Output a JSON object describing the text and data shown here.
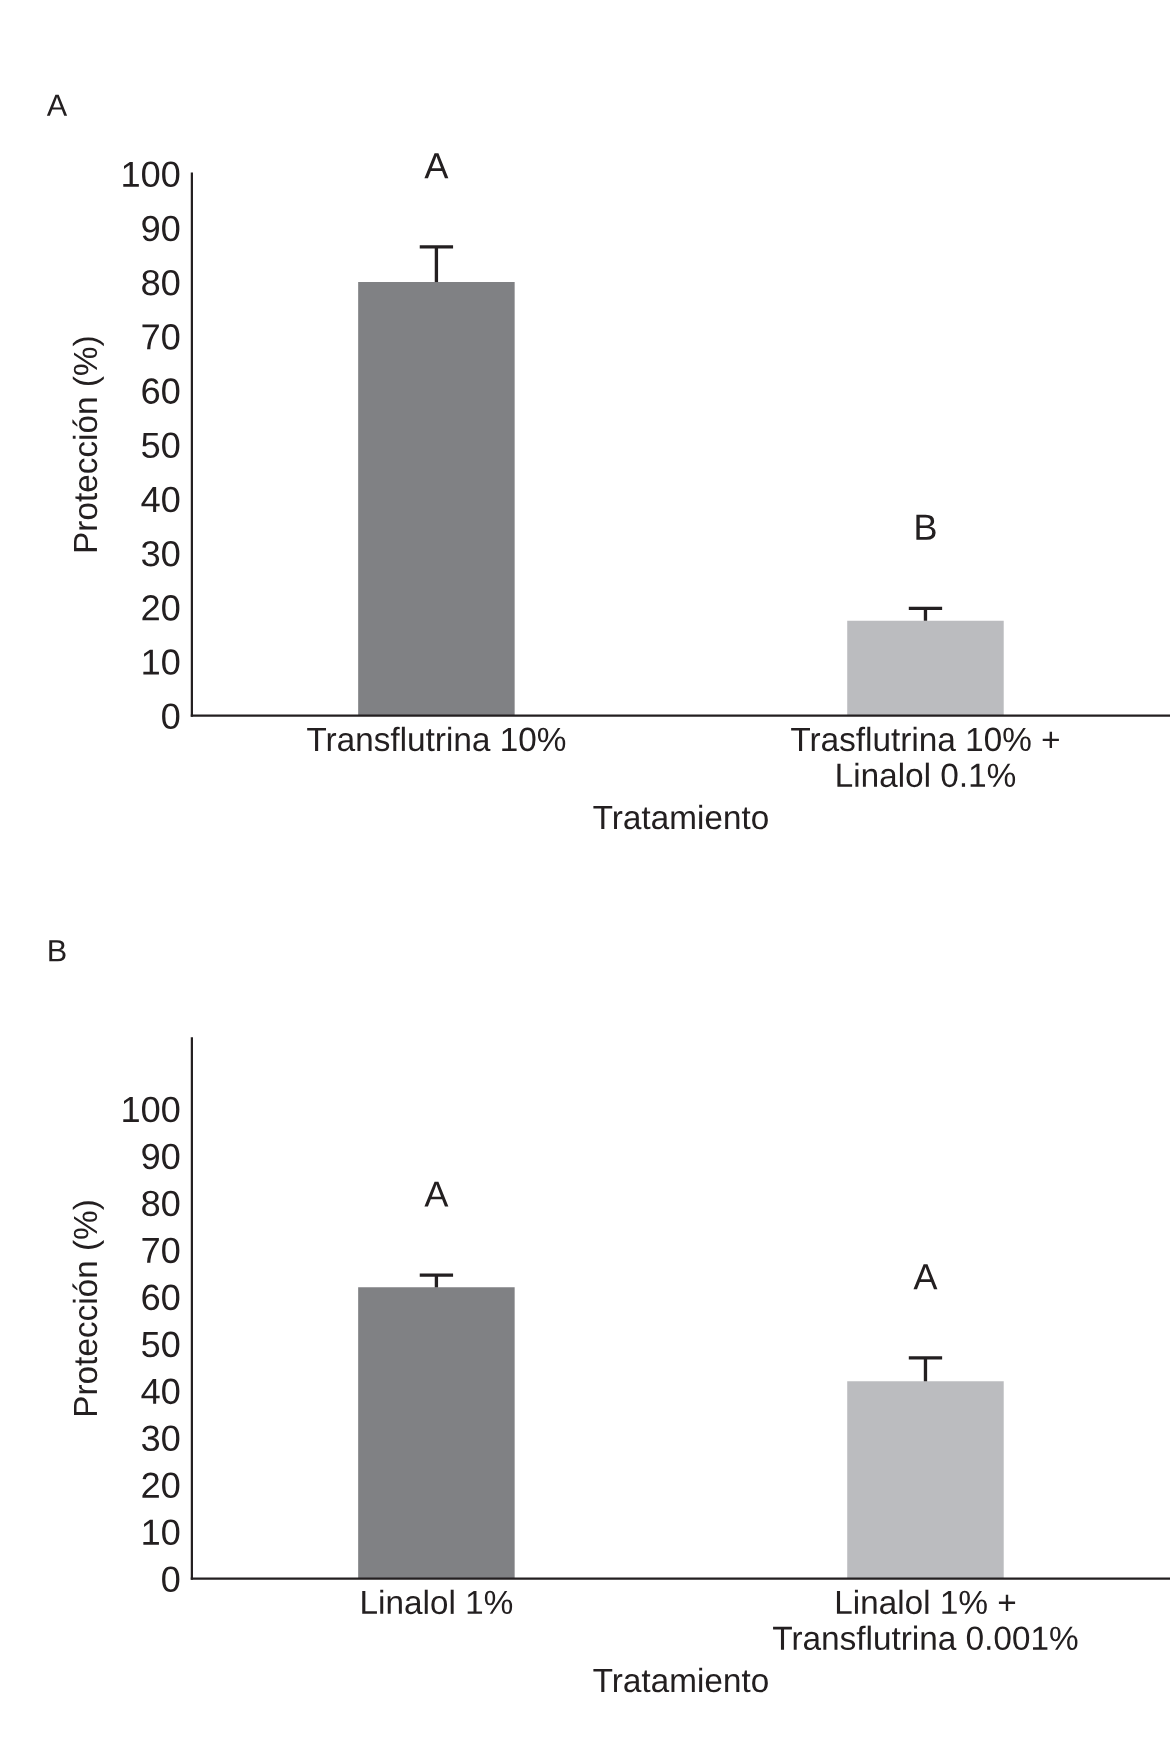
{
  "chart_data": [
    {
      "type": "bar",
      "title": "A",
      "xlabel": "Tratamiento",
      "ylabel": "Protección (%)",
      "categories": [
        "Transflutrina 10%",
        "Trasflutrina 10% +\nLinalol 0.1%"
      ],
      "values": [
        80,
        17.5
      ],
      "colors": [
        "#808184",
        "#bbbcbf"
      ],
      "errors": [
        [
          80,
          86.5
        ],
        [
          17.5,
          19.8
        ]
      ],
      "ylim": [
        0,
        100
      ],
      "yticks": [
        0,
        10,
        20,
        30,
        40,
        50,
        60,
        70,
        80,
        90,
        100
      ],
      "grid": false,
      "legend": false,
      "annotations": [
        "A",
        "B"
      ]
    },
    {
      "type": "bar",
      "title": "B",
      "xlabel": "Tratamiento",
      "ylabel": "Protección (%)",
      "categories": [
        "Linalol 1%",
        "Linalol 1% +\nTransflutrina 0.001%"
      ],
      "values": [
        62,
        42
      ],
      "colors": [
        "#808184",
        "#bbbcbf"
      ],
      "errors": [
        [
          62,
          64.6
        ],
        [
          42,
          47
        ]
      ],
      "ylim": [
        0,
        115
      ],
      "yticks": [
        0,
        10,
        20,
        30,
        40,
        50,
        60,
        70,
        80,
        90,
        100
      ],
      "grid": false,
      "legend": false,
      "annotations": [
        "A",
        "A"
      ]
    }
  ]
}
